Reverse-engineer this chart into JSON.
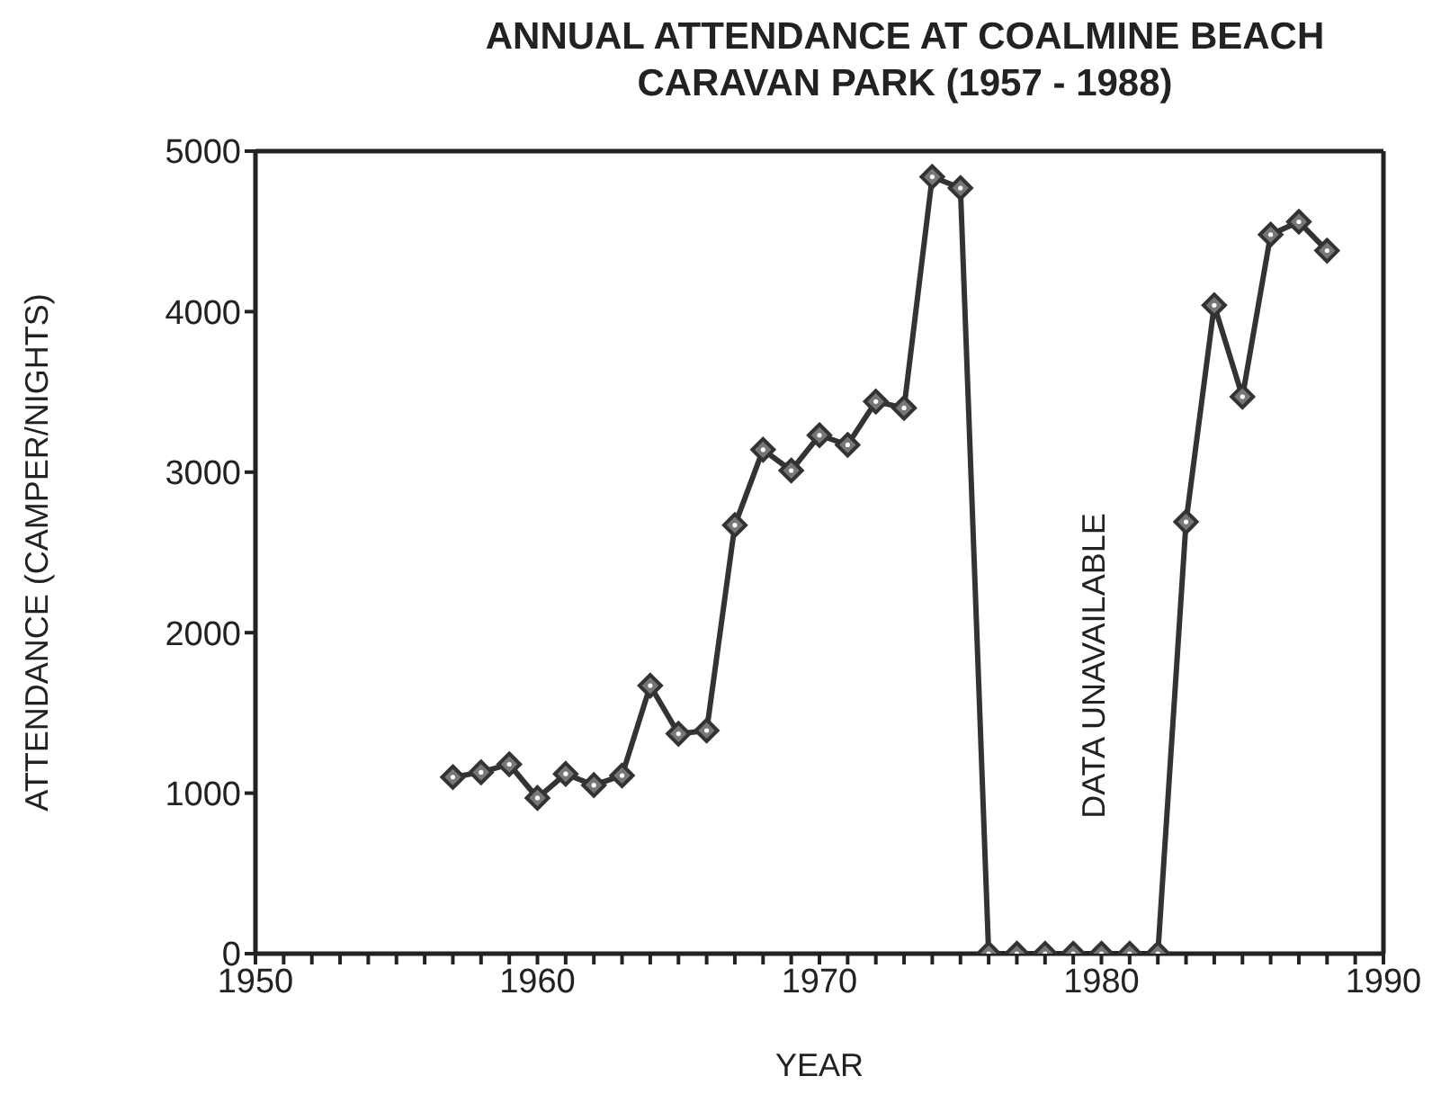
{
  "chart_data": {
    "type": "line",
    "title": "ANNUAL ATTENDANCE AT COALMINE BEACH CARAVAN PARK (1957 - 1988)",
    "xlabel": "YEAR",
    "ylabel": "ATTENDANCE (CAMPER/NIGHTS)",
    "x": [
      1957,
      1958,
      1959,
      1960,
      1961,
      1962,
      1963,
      1964,
      1965,
      1966,
      1967,
      1968,
      1969,
      1970,
      1971,
      1972,
      1973,
      1974,
      1975,
      1976,
      1977,
      1978,
      1979,
      1980,
      1981,
      1982,
      1983,
      1984,
      1985,
      1986,
      1987,
      1988
    ],
    "series": [
      {
        "color": "#333333",
        "values": [
          1100,
          1130,
          1180,
          970,
          1120,
          1050,
          1110,
          1670,
          1370,
          1390,
          2670,
          3140,
          3010,
          3230,
          3170,
          3440,
          3400,
          4840,
          4770,
          0,
          0,
          0,
          0,
          0,
          0,
          0,
          2690,
          4040,
          3470,
          4480,
          4560,
          4380
        ]
      }
    ],
    "xlim": [
      1950,
      1990
    ],
    "xticks": [
      1950,
      {
        "value": 1951,
        "label": null
      },
      {
        "value": 1952,
        "label": null
      },
      {
        "value": 1953,
        "label": null
      },
      {
        "value": 1954,
        "label": null
      },
      {
        "value": 1955,
        "label": null
      },
      {
        "value": 1956,
        "label": null
      },
      {
        "value": 1957,
        "label": null
      },
      {
        "value": 1958,
        "label": null
      },
      {
        "value": 1959,
        "label": null
      },
      1960,
      {
        "value": 1961,
        "label": null
      },
      {
        "value": 1962,
        "label": null
      },
      {
        "value": 1963,
        "label": null
      },
      {
        "value": 1964,
        "label": null
      },
      {
        "value": 1965,
        "label": null
      },
      {
        "value": 1966,
        "label": null
      },
      {
        "value": 1967,
        "label": null
      },
      {
        "value": 1968,
        "label": null
      },
      {
        "value": 1969,
        "label": null
      },
      1970,
      {
        "value": 1971,
        "label": null
      },
      {
        "value": 1972,
        "label": null
      },
      {
        "value": 1973,
        "label": null
      },
      {
        "value": 1974,
        "label": null
      },
      {
        "value": 1975,
        "label": null
      },
      {
        "value": 1976,
        "label": null
      },
      {
        "value": 1977,
        "label": null
      },
      {
        "value": 1978,
        "label": null
      },
      {
        "value": 1979,
        "label": null
      },
      1980,
      {
        "value": 1981,
        "label": null
      },
      {
        "value": 1982,
        "label": null
      },
      {
        "value": 1983,
        "label": null
      },
      {
        "value": 1984,
        "label": null
      },
      {
        "value": 1985,
        "label": null
      },
      {
        "value": 1986,
        "label": null
      },
      {
        "value": 1987,
        "label": null
      },
      {
        "value": 1988,
        "label": null
      },
      {
        "value": 1989,
        "label": null
      },
      1990
    ],
    "ylim": [
      0,
      5000
    ],
    "yticks": [
      0,
      1000,
      2000,
      3000,
      4000,
      5000
    ],
    "annotations": [
      "DATA UNAVAILABLE"
    ],
    "grid": false,
    "legend": false,
    "marker": "diamond",
    "line_style": "solid"
  }
}
